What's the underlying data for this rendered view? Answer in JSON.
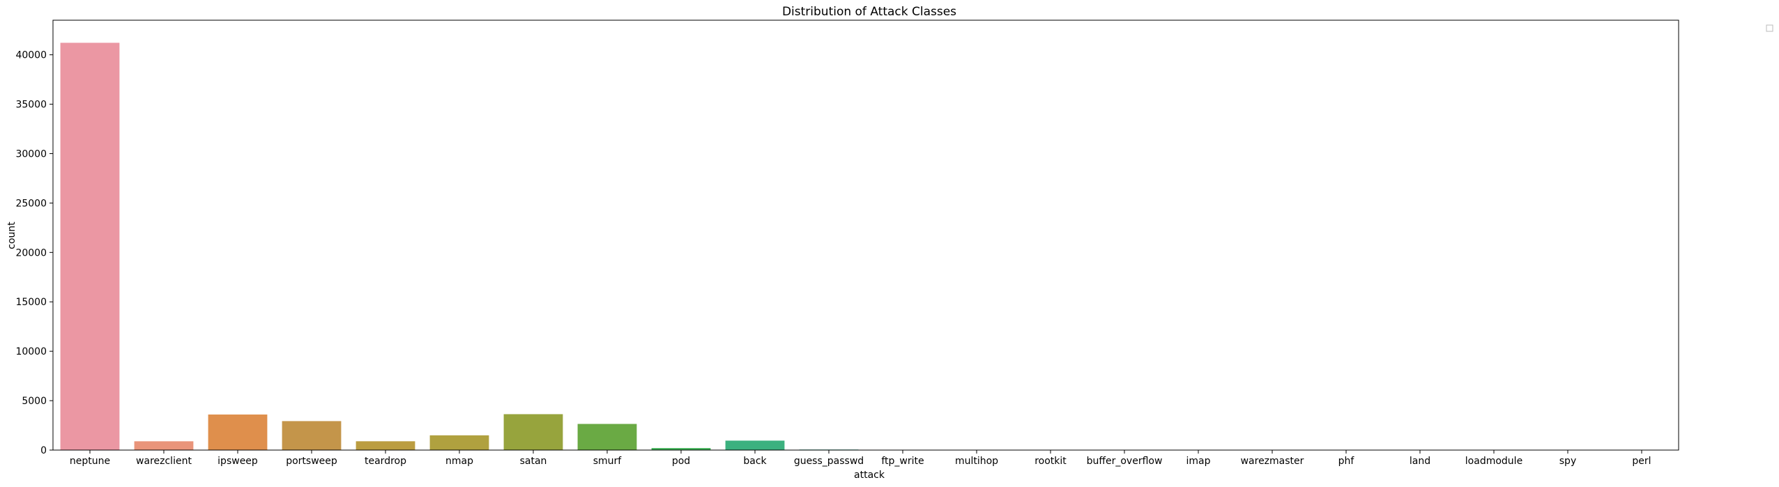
{
  "chart_data": {
    "type": "bar",
    "title": "Distribution of Attack Classes",
    "xlabel": "attack",
    "ylabel": "count",
    "ylim": [
      0,
      43500
    ],
    "yticks": [
      0,
      5000,
      10000,
      15000,
      20000,
      25000,
      30000,
      35000,
      40000
    ],
    "grid": false,
    "legend": "top-right (empty)",
    "categories": [
      "neptune",
      "warezclient",
      "ipsweep",
      "portsweep",
      "teardrop",
      "nmap",
      "satan",
      "smurf",
      "pod",
      "back",
      "guess_passwd",
      "ftp_write",
      "multihop",
      "rootkit",
      "buffer_overflow",
      "imap",
      "warezmaster",
      "phf",
      "land",
      "loadmodule",
      "spy",
      "perl"
    ],
    "values": [
      41214,
      890,
      3599,
      2931,
      892,
      1493,
      3633,
      2646,
      201,
      956,
      53,
      8,
      7,
      10,
      30,
      11,
      20,
      4,
      18,
      9,
      2,
      3
    ],
    "colors": [
      "#eb97a3",
      "#e9947a",
      "#df8f4c",
      "#c4954a",
      "#bb9d41",
      "#b0a13f",
      "#97a43d",
      "#6aaa44",
      "#3db055",
      "#3cb17f",
      "#3bae98",
      "#3cadaa",
      "#3babba",
      "#3ca9cb",
      "#4aa3dd",
      "#6a9de8",
      "#9a91ea",
      "#b98ae9",
      "#d37fe9",
      "#e47ed4",
      "#e887c3",
      "#e98fb1"
    ]
  }
}
